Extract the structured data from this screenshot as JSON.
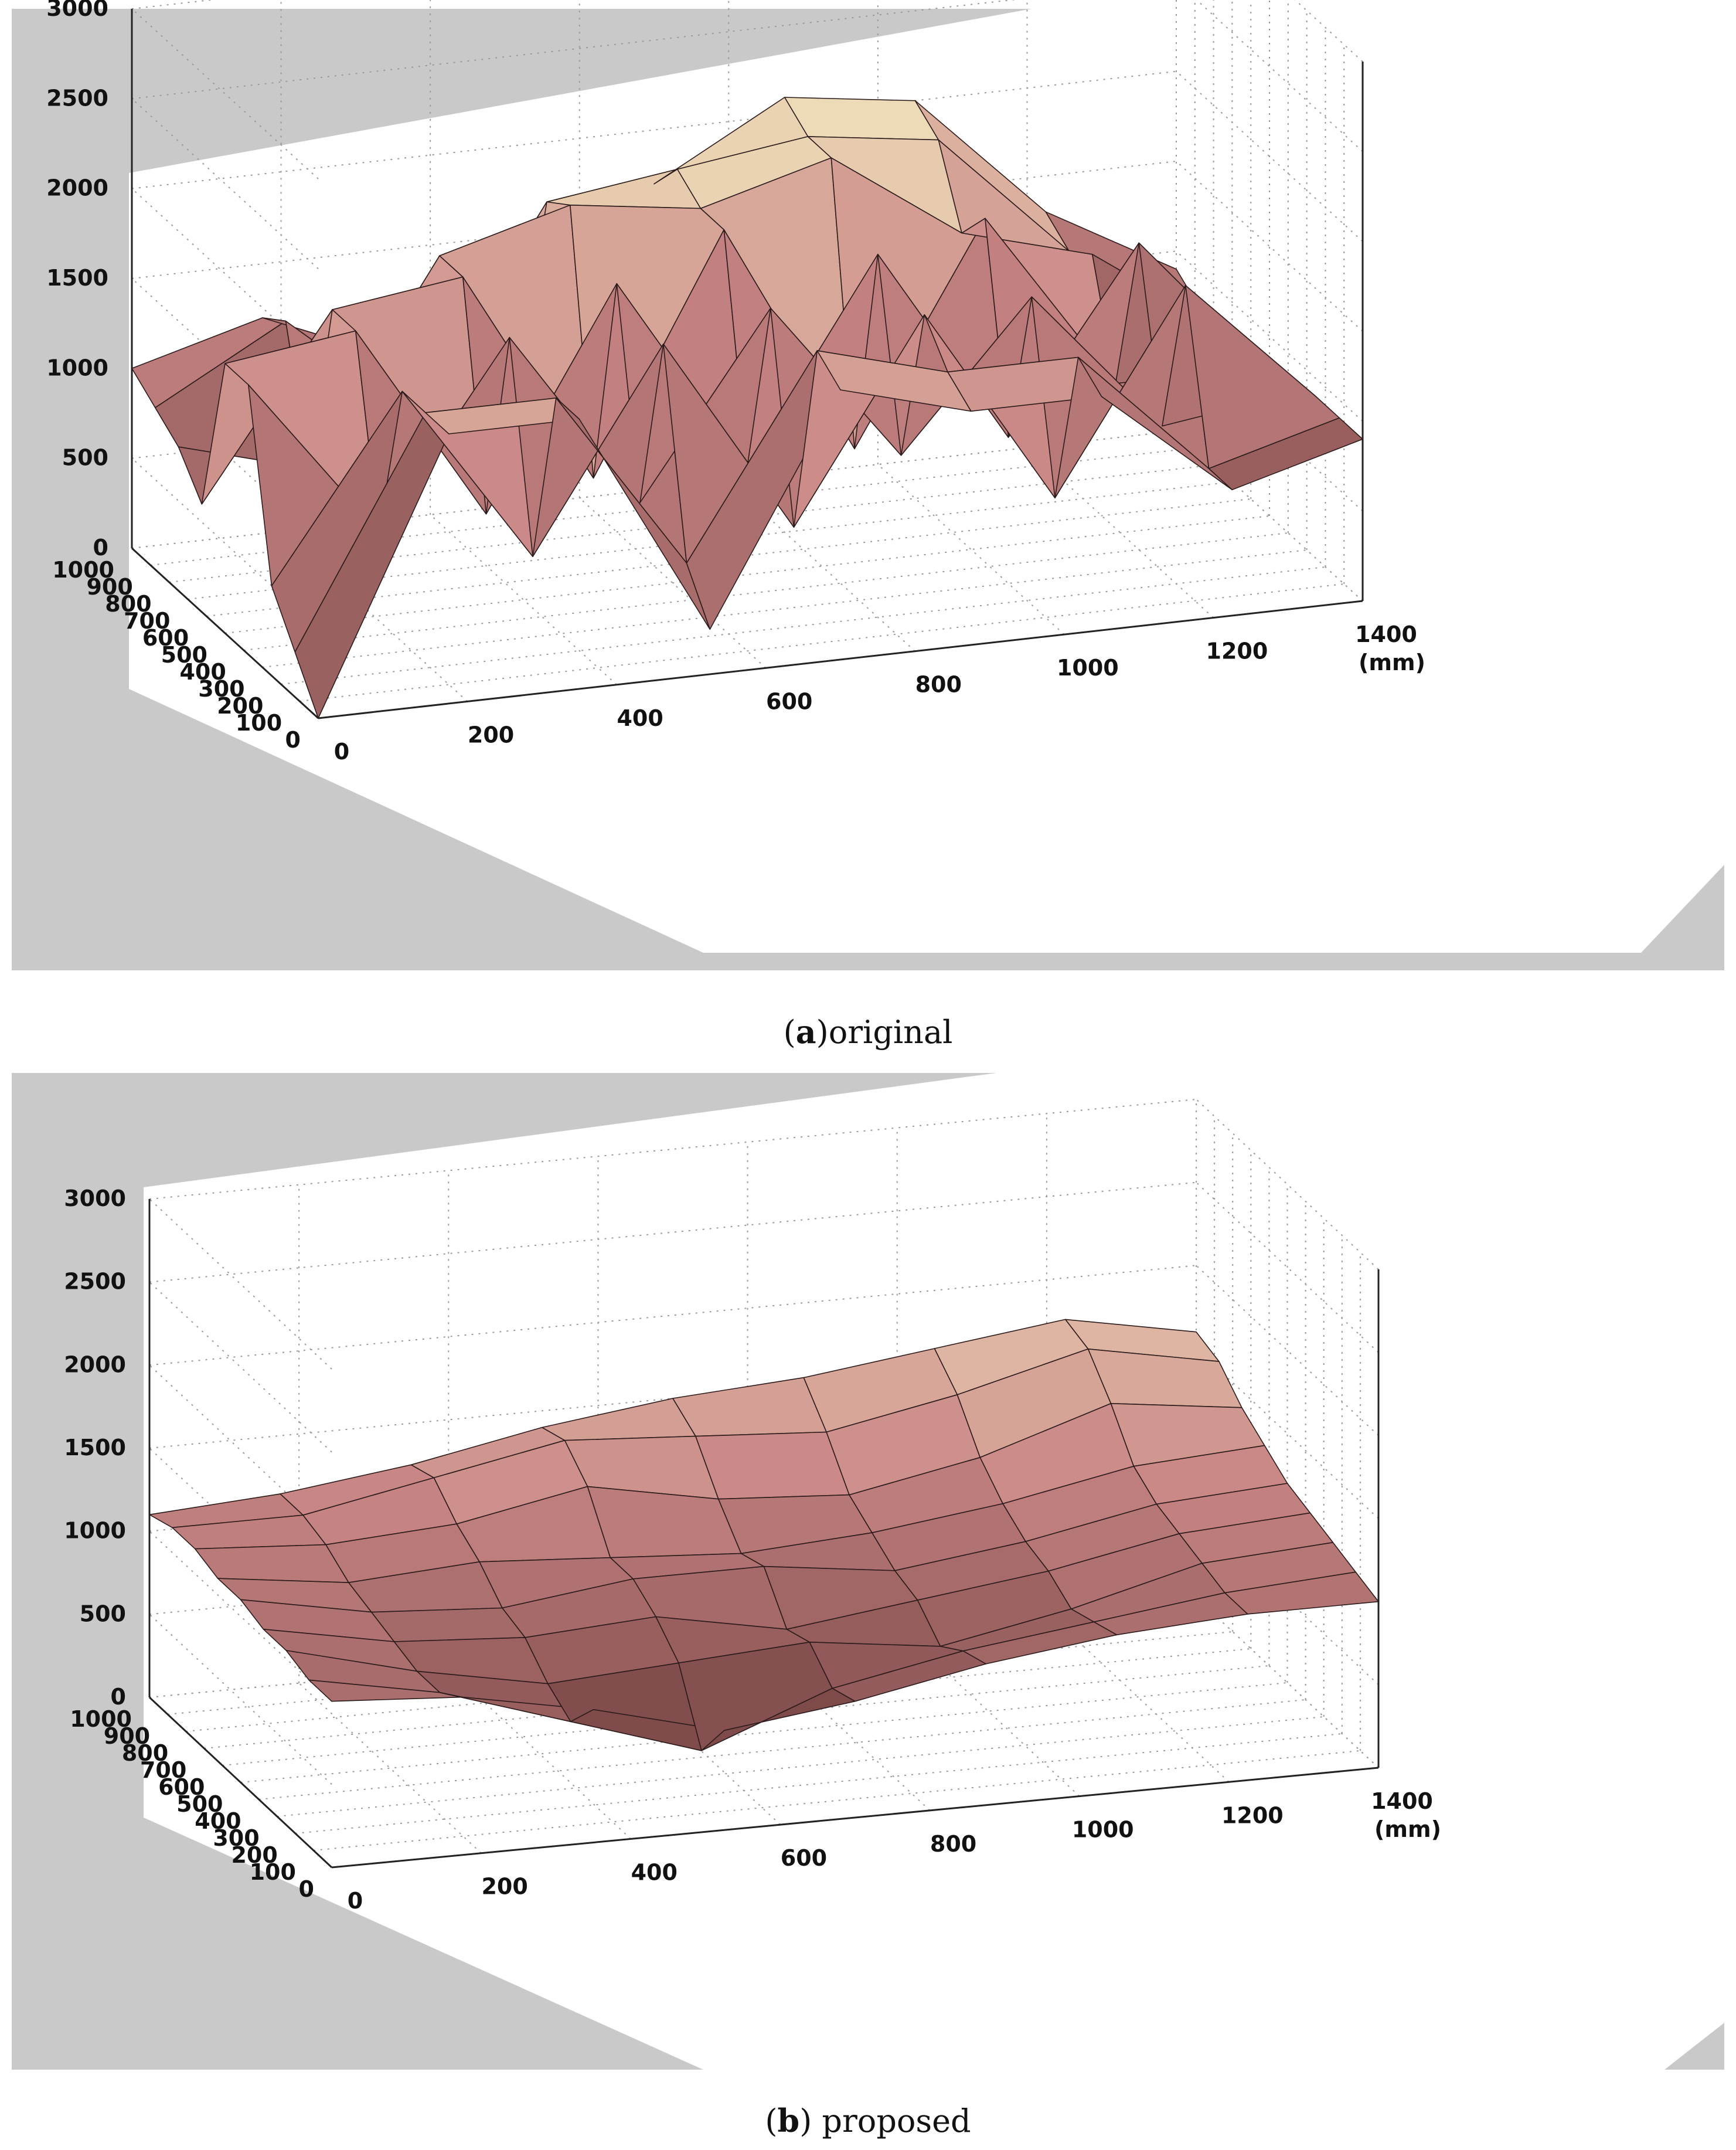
{
  "colors": {
    "panel_bg": "#c9c9c9",
    "axes_bg": "#ffffff",
    "grid": "#9a9a9a",
    "colormap_low": "#3a1414",
    "colormap_mid": "#c98686",
    "colormap_high": "#f6f0c4"
  },
  "captions": [
    {
      "letter": "a",
      "open": "(",
      "close": ")",
      "text": "original"
    },
    {
      "letter": "b",
      "open": "(",
      "close": ") ",
      "text": "proposed"
    }
  ],
  "chart_data": [
    {
      "type": "surface",
      "panel": "a",
      "grid": true,
      "x_range": [
        0,
        1400
      ],
      "y_range": [
        0,
        1000
      ],
      "z_range": [
        0,
        3000
      ],
      "x_ticks": [
        "0",
        "200",
        "400",
        "600",
        "800",
        "1000",
        "1200",
        "1400"
      ],
      "x_unit": "(mm)",
      "y_ticks": [
        "0",
        "100",
        "200",
        "300",
        "400",
        "500",
        "600",
        "700",
        "800",
        "900",
        "1000"
      ],
      "z_ticks": [
        "0",
        "500",
        "1000",
        "1500",
        "2000",
        "2500",
        "3000"
      ],
      "x": [
        0,
        175,
        350,
        525,
        700,
        875,
        1050,
        1225,
        1400
      ],
      "y": [
        0,
        125,
        250,
        375,
        500,
        625,
        750,
        875,
        1000
      ],
      "z": [
        [
          0,
          1500,
          1500,
          250,
          1500,
          1300,
          1300,
          700,
          900
        ],
        [
          250,
          1500,
          1500,
          500,
          1600,
          1400,
          1400,
          700,
          900
        ],
        [
          500,
          1500,
          500,
          1600,
          500,
          1600,
          500,
          1600,
          900
        ],
        [
          1500,
          600,
          1600,
          600,
          1600,
          700,
          1500,
          700,
          800
        ],
        [
          1500,
          1600,
          500,
          1700,
          600,
          1700,
          600,
          1600,
          800
        ],
        [
          600,
          1600,
          1700,
          500,
          1800,
          500,
          1700,
          700,
          700
        ],
        [
          800,
          600,
          1700,
          1900,
          1800,
          2000,
          1500,
          1300,
          800
        ],
        [
          900,
          1300,
          700,
          1800,
          1900,
          2000,
          1900,
          1200,
          800
        ],
        [
          1000,
          1200,
          900,
          900,
          1700,
          2100,
          2000,
          1300,
          900
        ]
      ]
    },
    {
      "type": "surface",
      "panel": "b",
      "grid": true,
      "x_range": [
        0,
        1400
      ],
      "y_range": [
        0,
        1000
      ],
      "z_range": [
        0,
        3000
      ],
      "x_ticks": [
        "0",
        "200",
        "400",
        "600",
        "800",
        "1000",
        "1200",
        "1400"
      ],
      "x_unit": "(mm)",
      "y_ticks": [
        "0",
        "100",
        "200",
        "300",
        "400",
        "500",
        "600",
        "700",
        "800",
        "900",
        "1000"
      ],
      "z_ticks": [
        "0",
        "500",
        "1000",
        "1500",
        "2000",
        "2500",
        "3000"
      ],
      "x": [
        0,
        175,
        350,
        525,
        700,
        875,
        1050,
        1225,
        1400
      ],
      "y": [
        0,
        125,
        250,
        375,
        500,
        625,
        750,
        875,
        1000
      ],
      "z": [
        [
          1000,
          950,
          800,
          600,
          700,
          850,
          950,
          1000,
          1000
        ],
        [
          1000,
          850,
          600,
          350,
          650,
          800,
          900,
          1000,
          1050
        ],
        [
          1050,
          850,
          700,
          750,
          800,
          700,
          850,
          1050,
          1100
        ],
        [
          1050,
          900,
          850,
          900,
          750,
          850,
          950,
          1100,
          1150
        ],
        [
          1100,
          950,
          900,
          1000,
          1000,
          900,
          1000,
          1150,
          1200
        ],
        [
          1100,
          1000,
          1050,
          1000,
          950,
          1000,
          1100,
          1250,
          1300
        ],
        [
          1150,
          1100,
          1150,
          1300,
          1150,
          1100,
          1250,
          1500,
          1400
        ],
        [
          1150,
          1150,
          1300,
          1450,
          1400,
          1350,
          1500,
          1700,
          1550
        ],
        [
          1100,
          1150,
          1250,
          1400,
          1500,
          1550,
          1650,
          1750,
          1600
        ]
      ]
    }
  ]
}
